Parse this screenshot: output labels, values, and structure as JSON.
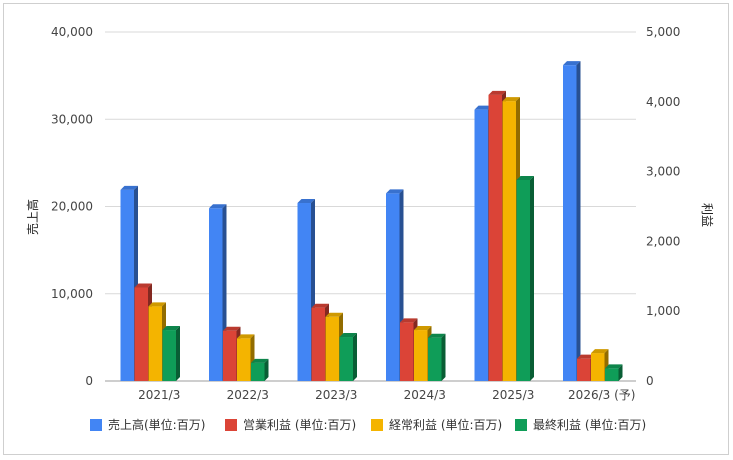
{
  "chart_data": {
    "type": "bar",
    "categories": [
      "2021/3",
      "2022/3",
      "2023/3",
      "2024/3",
      "2025/3",
      "2026/3 (予)"
    ],
    "left_axis": {
      "label": "売上高",
      "ylim": [
        0,
        40000
      ],
      "ticks": [
        "0",
        "10,000",
        "20,000",
        "30,000",
        "40,000"
      ]
    },
    "right_axis": {
      "label": "利益",
      "ylim": [
        0,
        5000
      ],
      "ticks": [
        "0",
        "1,000",
        "2,000",
        "3,000",
        "4,000",
        "5,000"
      ]
    },
    "series": [
      {
        "name": "売上高(単位:百万)",
        "axis": "left",
        "color": "#4285f4",
        "values": [
          21900,
          19800,
          20400,
          21500,
          31100,
          36200
        ]
      },
      {
        "name": "営業利益 (単位:百万)",
        "axis": "right",
        "color": "#db4437",
        "values": [
          1340,
          720,
          1050,
          840,
          4100,
          320
        ]
      },
      {
        "name": "経常利益 (単位:百万)",
        "axis": "right",
        "color": "#f4b400",
        "values": [
          1070,
          610,
          920,
          730,
          4010,
          400
        ]
      },
      {
        "name": "最終利益 (単位:百万)",
        "axis": "right",
        "color": "#0f9d58",
        "values": [
          730,
          260,
          630,
          620,
          2880,
          180
        ]
      }
    ],
    "grid": true,
    "legend": "bottom"
  }
}
